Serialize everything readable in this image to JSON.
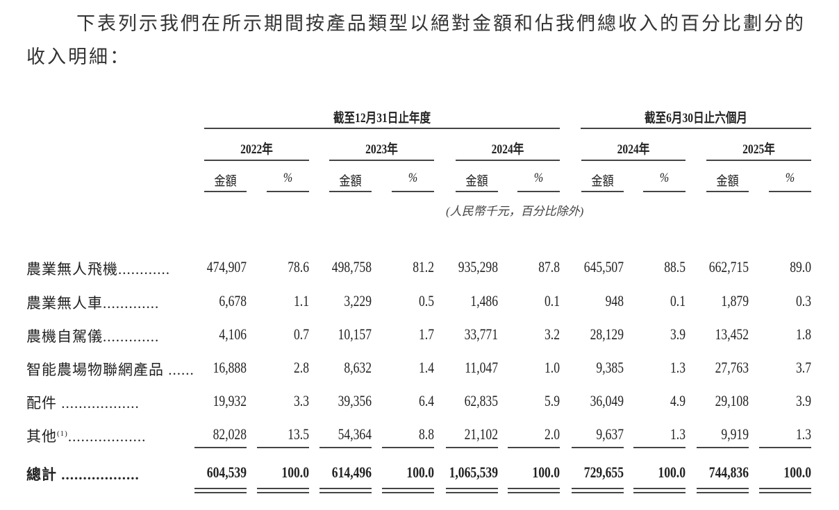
{
  "intro": {
    "line1": "下表列示我們在所示期間按產品類型以絕對金額和佔我們總收入的百分比劃分的",
    "line2": "收入明細："
  },
  "table": {
    "group_headers": [
      "截至12月31日止年度",
      "截至6月30日止六個月"
    ],
    "years": [
      "2022年",
      "2023年",
      "2024年",
      "2024年",
      "2025年"
    ],
    "amount_label": "金額",
    "percent_label": "%",
    "unit_note": "(人民幣千元，百分比除外)",
    "rows": [
      {
        "label": "農業無人飛機............",
        "values": [
          "474,907",
          "78.6",
          "498,758",
          "81.2",
          "935,298",
          "87.8",
          "645,507",
          "88.5",
          "662,715",
          "89.0"
        ]
      },
      {
        "label": "農業無人車.............",
        "values": [
          "6,678",
          "1.1",
          "3,229",
          "0.5",
          "1,486",
          "0.1",
          "948",
          "0.1",
          "1,879",
          "0.3"
        ]
      },
      {
        "label": "農機自駕儀.............",
        "values": [
          "4,106",
          "0.7",
          "10,157",
          "1.7",
          "33,771",
          "3.2",
          "28,129",
          "3.9",
          "13,452",
          "1.8"
        ]
      },
      {
        "label": "智能農場物聯網產品 ......",
        "values": [
          "16,888",
          "2.8",
          "8,632",
          "1.4",
          "11,047",
          "1.0",
          "9,385",
          "1.3",
          "27,763",
          "3.7"
        ]
      },
      {
        "label": "配件 ..................",
        "values": [
          "19,932",
          "3.3",
          "39,356",
          "6.4",
          "62,835",
          "5.9",
          "36,049",
          "4.9",
          "29,108",
          "3.9"
        ]
      },
      {
        "label": "其他",
        "footnote": "(1)",
        "leader": "..................",
        "values": [
          "82,028",
          "13.5",
          "54,364",
          "8.8",
          "21,102",
          "2.0",
          "9,637",
          "1.3",
          "9,919",
          "1.3"
        ]
      }
    ],
    "total": {
      "label": "總計 ..................",
      "values": [
        "604,539",
        "100.0",
        "614,496",
        "100.0",
        "1,065,539",
        "100.0",
        "729,655",
        "100.0",
        "744,836",
        "100.0"
      ]
    }
  }
}
